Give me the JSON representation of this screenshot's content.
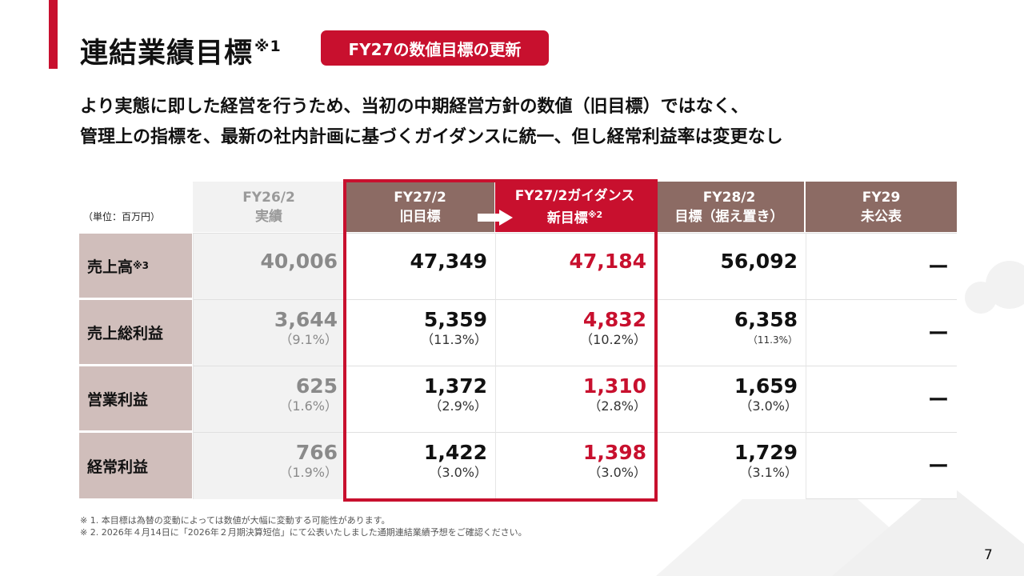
{
  "slide": {
    "title": "連結業績目標",
    "title_note": "※1",
    "badge": "FY27の数値目標の更新",
    "lead_line1": "より実態に即した経営を行うため、当初の中期経営方針の数値（旧目標）ではなく、",
    "lead_line2": "管理上の指標を、最新の社内計画に基づくガイダンスに統一、但し経常利益率は変更なし",
    "unit": "（単位：百万円）",
    "page_number": "7"
  },
  "colors": {
    "accent": "#c8102e",
    "brown": "#8c6b64",
    "row_label_bg": "#d0bebb",
    "actual_bg": "#f2f2f2"
  },
  "table": {
    "columns": [
      {
        "line1": "FY26/2",
        "line2": "実績"
      },
      {
        "line1": "FY27/2",
        "line2": "旧目標"
      },
      {
        "line1": "FY27/2ガイダンス",
        "line2": "新目標",
        "note": "※2"
      },
      {
        "line1": "FY28/2",
        "line2": "目標（据え置き）"
      },
      {
        "line1": "FY29",
        "line2": "未公表"
      }
    ],
    "rows": [
      {
        "label": "売上高",
        "note": "※3",
        "actual": "40,006",
        "old": "47,349",
        "guidance": "47,184",
        "fy28": "56,092",
        "fy29": "ー"
      },
      {
        "label": "売上総利益",
        "actual": "3,644",
        "actual_pct": "（9.1%）",
        "old": "5,359",
        "old_pct": "（11.3%）",
        "guidance": "4,832",
        "guidance_pct": "（10.2%）",
        "fy28": "6,358",
        "fy28_pct": "（11.3%）",
        "fy29": "ー"
      },
      {
        "label": "営業利益",
        "actual": "625",
        "actual_pct": "（1.6%）",
        "old": "1,372",
        "old_pct": "（2.9%）",
        "guidance": "1,310",
        "guidance_pct": "（2.8%）",
        "fy28": "1,659",
        "fy28_pct": "（3.0%）",
        "fy29": "ー"
      },
      {
        "label": "経常利益",
        "actual": "766",
        "actual_pct": "（1.9%）",
        "old": "1,422",
        "old_pct": "（3.0%）",
        "guidance": "1,398",
        "guidance_pct": "（3.0%）",
        "fy28": "1,729",
        "fy28_pct": "（3.1%）",
        "fy29": "ー"
      }
    ]
  },
  "footnotes": {
    "note1": "※ 1. 本目標は為替の変動によっては数値が大幅に変動する可能性があります。",
    "note2": "※ 2. 2026年４月14日に「2026年２月期決算短信」にて公表いたしました通期連結業績予想をご確認ください。"
  }
}
